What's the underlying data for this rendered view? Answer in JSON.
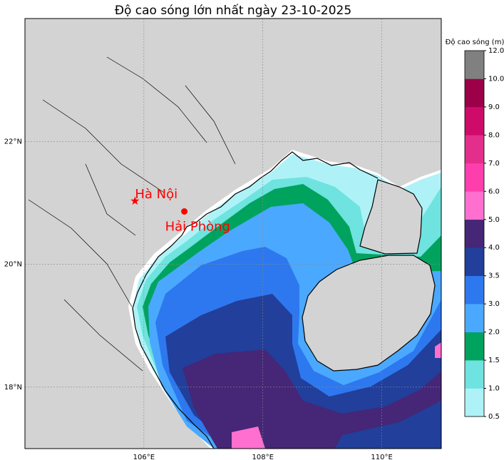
{
  "chart_data": {
    "type": "map",
    "title": "Độ cao sóng lớn nhất ngày 23-10-2025",
    "xlim": [
      104,
      111
    ],
    "ylim": [
      17,
      24
    ],
    "xticks": [
      {
        "value": 106,
        "label": "106°E"
      },
      {
        "value": 108,
        "label": "108°E"
      },
      {
        "value": 110,
        "label": "110°E"
      }
    ],
    "yticks": [
      {
        "value": 18,
        "label": "18°N"
      },
      {
        "value": 20,
        "label": "20°N"
      },
      {
        "value": 22,
        "label": "22°N"
      }
    ],
    "grid": true,
    "colorbar": {
      "label": "Độ cao sóng (m)",
      "ticks": [
        {
          "value": 0.5,
          "label": "0.5"
        },
        {
          "value": 1,
          "label": "1.0"
        },
        {
          "value": 1.5,
          "label": "1.5"
        },
        {
          "value": 2,
          "label": "2.0"
        },
        {
          "value": 3,
          "label": "3.0"
        },
        {
          "value": 3.5,
          "label": "3.5"
        },
        {
          "value": 4,
          "label": "4.0"
        },
        {
          "value": 5,
          "label": "5.0"
        },
        {
          "value": 6,
          "label": "6.0"
        },
        {
          "value": 7,
          "label": "7.0"
        },
        {
          "value": 8,
          "label": "8.0"
        },
        {
          "value": 9,
          "label": "9.0"
        },
        {
          "value": 10,
          "label": "10.0"
        },
        {
          "value": 12,
          "label": "12.0"
        }
      ],
      "colors": [
        "#aef2f7",
        "#6fe3df",
        "#00a35e",
        "#4aa9ff",
        "#2d78ef",
        "#213f9b",
        "#462677",
        "#ff6fcf",
        "#ff3eae",
        "#e42e8c",
        "#cf0b6a",
        "#9c0049",
        "#808080"
      ]
    },
    "cities": [
      {
        "name": "Hà Nội",
        "lon": 105.85,
        "lat": 21.03,
        "marker": "star",
        "color": "red"
      },
      {
        "name": "Hải Phòng",
        "lon": 106.68,
        "lat": 20.86,
        "marker": "circle",
        "color": "red"
      }
    ]
  }
}
